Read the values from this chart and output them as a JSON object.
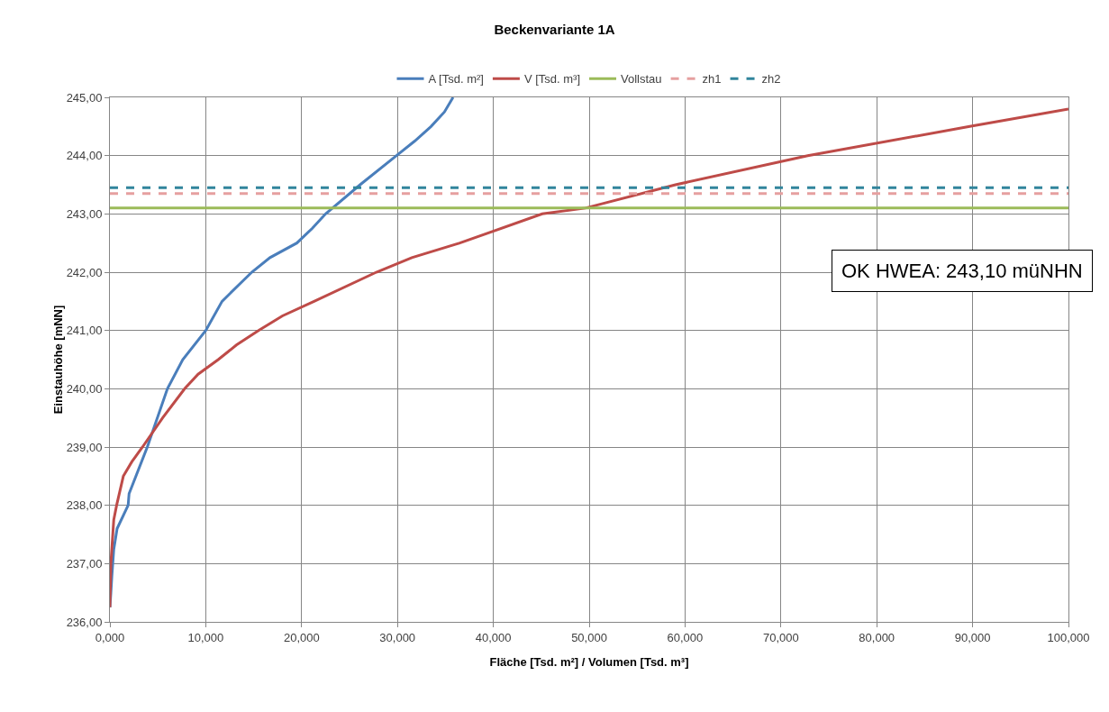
{
  "chart_data": {
    "type": "line",
    "title": "Beckenvariante 1A",
    "xlabel": "Fläche [Tsd. m²] / Volumen [Tsd. m³]",
    "ylabel": "Einstauhöhe [mNN]",
    "series": [
      {
        "name": "A [Tsd. m²]",
        "color": "#4a7ebb",
        "x": [
          0.0,
          0.1,
          0.2,
          0.4,
          0.75,
          1.9,
          2.0,
          3.9,
          6.0,
          7.6,
          10.0,
          11.7,
          14.8,
          16.7,
          19.5,
          21.1,
          22.5,
          26.1,
          29.9,
          31.8,
          33.5,
          34.9,
          35.8
        ],
        "values": [
          236.25,
          236.5,
          236.78,
          237.24,
          237.6,
          238.0,
          238.2,
          239.0,
          240.0,
          240.5,
          241.0,
          241.5,
          242.0,
          242.25,
          242.5,
          242.75,
          243.0,
          243.5,
          244.0,
          244.25,
          244.5,
          244.75,
          245.0
        ]
      },
      {
        "name": "V [Tsd. m³]",
        "color": "#be4b48",
        "x": [
          0.0,
          0.1,
          0.4,
          0.7,
          1.4,
          2.3,
          3.4,
          5.5,
          7.8,
          9.2,
          11.3,
          13.2,
          15.5,
          18.0,
          21.3,
          27.8,
          31.5,
          36.5,
          45.1,
          49.6,
          59.0,
          72.8,
          89.7,
          100.0
        ],
        "values": [
          236.25,
          237.0,
          237.75,
          238.0,
          238.5,
          238.75,
          239.0,
          239.5,
          240.0,
          240.25,
          240.5,
          240.75,
          241.0,
          241.25,
          241.5,
          242.0,
          242.25,
          242.5,
          243.0,
          243.1,
          243.5,
          244.0,
          244.5,
          244.8
        ]
      }
    ],
    "ref_lines": [
      {
        "axis": "y",
        "value": 243.1,
        "label": "Vollstau",
        "color": "#9bbb59",
        "line_style": "solid"
      },
      {
        "axis": "y",
        "value": 243.35,
        "label": "zh1",
        "color": "#e6a0a0",
        "line_style": "dashed"
      },
      {
        "axis": "y",
        "value": 243.45,
        "label": "zh2",
        "color": "#31859c",
        "line_style": "dashed"
      }
    ],
    "annotations": [
      "OK HWEA: 243,10 müNHN"
    ],
    "xlim": [
      0,
      100
    ],
    "ylim": [
      236,
      245
    ],
    "xticks": [
      {
        "value": 0,
        "label": "0,000"
      },
      {
        "value": 10,
        "label": "10,000"
      },
      {
        "value": 20,
        "label": "20,000"
      },
      {
        "value": 30,
        "label": "30,000"
      },
      {
        "value": 40,
        "label": "40,000"
      },
      {
        "value": 50,
        "label": "50,000"
      },
      {
        "value": 60,
        "label": "60,000"
      },
      {
        "value": 70,
        "label": "70,000"
      },
      {
        "value": 80,
        "label": "80,000"
      },
      {
        "value": 90,
        "label": "90,000"
      },
      {
        "value": 100,
        "label": "100,000"
      }
    ],
    "yticks": [
      {
        "value": 236,
        "label": "236,00"
      },
      {
        "value": 237,
        "label": "237,00"
      },
      {
        "value": 238,
        "label": "238,00"
      },
      {
        "value": 239,
        "label": "239,00"
      },
      {
        "value": 240,
        "label": "240,00"
      },
      {
        "value": 241,
        "label": "241,00"
      },
      {
        "value": 242,
        "label": "242,00"
      },
      {
        "value": 243,
        "label": "243,00"
      },
      {
        "value": 244,
        "label": "244,00"
      },
      {
        "value": 245,
        "label": "245,00"
      }
    ],
    "grid": true,
    "legend": "top",
    "marker": "none",
    "line_style": "solid"
  }
}
